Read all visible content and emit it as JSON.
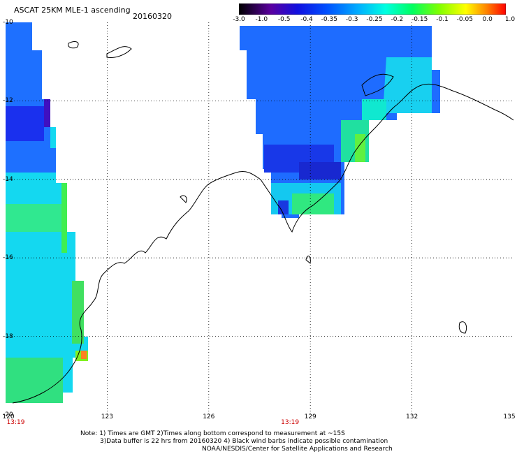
{
  "header": {
    "title": "ASCAT 25KM MLE-1 ascending",
    "date": "20160320"
  },
  "colorbar": {
    "labels": [
      "-3.0",
      "-1.0",
      "-0.5",
      "-0.4",
      "-0.35",
      "-0.3",
      "-0.25",
      "-0.2",
      "-0.15",
      "-0.1",
      "-0.05",
      "0.0",
      "1.0"
    ],
    "colors": [
      "#1a0028",
      "#3a0070",
      "#2010b0",
      "#0030f0",
      "#0080ff",
      "#00c0ff",
      "#00ffee",
      "#00ff80",
      "#40ff00",
      "#c0ff00",
      "#ffe000",
      "#ff8000",
      "#ff2000"
    ]
  },
  "map": {
    "lon_labels": [
      "120",
      "123",
      "126",
      "129",
      "132",
      "135"
    ],
    "lat_labels": [
      "-10",
      "-12",
      "-14",
      "-16",
      "-18",
      "-20"
    ],
    "time_labels": [
      "13:19",
      "13:19"
    ]
  },
  "notes": {
    "line1": "Note: 1) Times are GMT 2)Times along bottom correspond to measurement at ~15S",
    "line2": "3)Data buffer is 22 hrs from 20160320 4) Black wind barbs indicate possible contamination",
    "line3": "NOAA/NESDIS/Center for Satellite Applications and Research"
  }
}
